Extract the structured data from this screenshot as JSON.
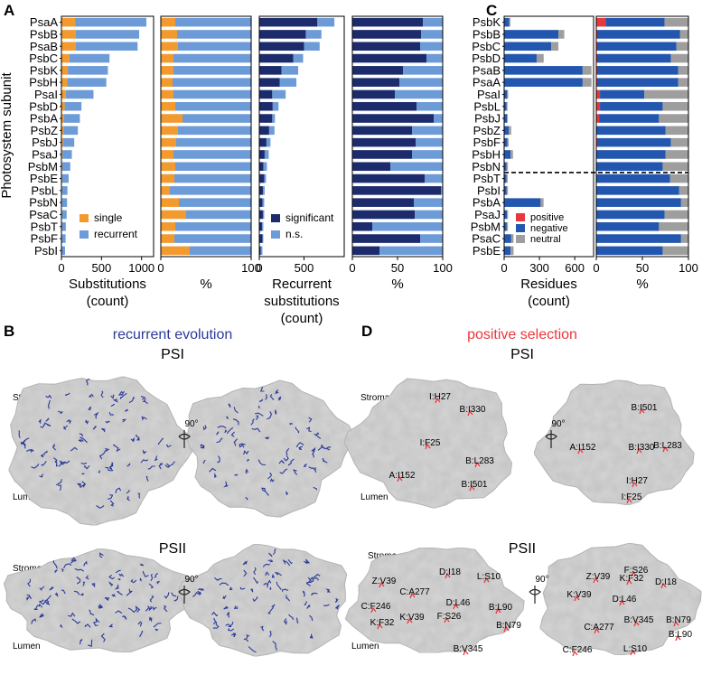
{
  "panels": {
    "A": {
      "letter": "A"
    },
    "B": {
      "letter": "B",
      "title": "recurrent evolution",
      "psi": "PSI",
      "psii": "PSII",
      "stroma": "Stroma",
      "lumen": "Lumen",
      "rotation": "90°"
    },
    "C": {
      "letter": "C"
    },
    "D": {
      "letter": "D",
      "title": "positive selection",
      "psi": "PSI",
      "psii": "PSII",
      "stroma": "Stroma",
      "lumen": "Lumen",
      "rotation": "90°"
    }
  },
  "colors": {
    "single": "#F39A2E",
    "recurrent": "#6D9BD8",
    "significant": "#1C2B6B",
    "ns": "#6D9BD8",
    "positive": "#E8383D",
    "negative": "#2356AE",
    "neutral": "#9E9E9E",
    "recurrent_evo": "#2B3A9A",
    "pos_sel": "#E8383D"
  },
  "chart_data": [
    {
      "type": "bar",
      "orientation": "horizontal",
      "stacked": true,
      "title": "",
      "ylabel": "Photosystem subunit",
      "xlabel": "Substitutions (count)",
      "xlim": [
        0,
        1150
      ],
      "xticks": [
        0,
        500,
        1000
      ],
      "categories": [
        "PsaA",
        "PsbB",
        "PsaB",
        "PsbC",
        "PsbK",
        "PsbH",
        "PsaI",
        "PsbD",
        "PsbA",
        "PsbZ",
        "PsbJ",
        "PsaJ",
        "PsbM",
        "PsbE",
        "PsbL",
        "PsbN",
        "PsaC",
        "PsbT",
        "PsbF",
        "PsbI"
      ],
      "series": [
        {
          "name": "single",
          "values": [
            170,
            180,
            180,
            100,
            80,
            70,
            55,
            40,
            30,
            25,
            20,
            15,
            12,
            10,
            8,
            8,
            7,
            6,
            6,
            5
          ]
        },
        {
          "name": "recurrent",
          "values": [
            890,
            790,
            770,
            500,
            500,
            490,
            345,
            210,
            200,
            180,
            140,
            115,
            98,
            80,
            67,
            62,
            58,
            49,
            46,
            40
          ]
        }
      ],
      "legend": [
        "single",
        "recurrent"
      ],
      "legend_position": "bottom-right"
    },
    {
      "type": "bar",
      "orientation": "horizontal",
      "stacked": true,
      "xlabel": "%",
      "xlim": [
        0,
        100
      ],
      "xticks": [
        0,
        100
      ],
      "categories": [
        "PsaA",
        "PsbB",
        "PsaB",
        "PsbC",
        "PsbK",
        "PsbH",
        "PsaI",
        "PsbD",
        "PsbA",
        "PsbZ",
        "PsbJ",
        "PsaJ",
        "PsbM",
        "PsbE",
        "PsbL",
        "PsbN",
        "PsaC",
        "PsbT",
        "PsbF",
        "PsbI"
      ],
      "series": [
        {
          "name": "single",
          "values": [
            16,
            18,
            19,
            14,
            14,
            13,
            14,
            16,
            24,
            19,
            17,
            14,
            16,
            15,
            10,
            20,
            28,
            16,
            15,
            32
          ]
        },
        {
          "name": "recurrent",
          "values": [
            84,
            82,
            81,
            86,
            86,
            87,
            86,
            84,
            76,
            81,
            83,
            86,
            84,
            85,
            90,
            80,
            72,
            84,
            85,
            68
          ]
        }
      ]
    },
    {
      "type": "bar",
      "orientation": "horizontal",
      "stacked": true,
      "xlabel": "Recurrent substitutions (count)",
      "xlim": [
        0,
        950
      ],
      "xticks": [
        0,
        500
      ],
      "categories": [
        "PsaA",
        "PsbB",
        "PsaB",
        "PsbC",
        "PsbK",
        "PsbH",
        "PsaI",
        "PsbD",
        "PsbA",
        "PsbZ",
        "PsbJ",
        "PsaJ",
        "PsbM",
        "PsbE",
        "PsbL",
        "PsbN",
        "PsaC",
        "PsbT",
        "PsbF",
        "PsbI"
      ],
      "series": [
        {
          "name": "significant",
          "values": [
            650,
            520,
            500,
            380,
            250,
            230,
            145,
            150,
            145,
            110,
            80,
            60,
            45,
            55,
            40,
            35,
            40,
            30,
            35,
            15
          ]
        },
        {
          "name": "n.s.",
          "values": [
            190,
            175,
            175,
            110,
            185,
            185,
            150,
            65,
            30,
            60,
            45,
            45,
            40,
            20,
            20,
            20,
            15,
            15,
            10,
            20
          ]
        }
      ],
      "legend": [
        "significant",
        "n.s."
      ],
      "legend_position": "bottom-right"
    },
    {
      "type": "bar",
      "orientation": "horizontal",
      "stacked": true,
      "xlabel": "%",
      "xlim": [
        0,
        100
      ],
      "xticks": [
        0,
        50,
        100
      ],
      "categories": [
        "PsaA",
        "PsbB",
        "PsaB",
        "PsbC",
        "PsbK",
        "PsbH",
        "PsaI",
        "PsbD",
        "PsbA",
        "PsbZ",
        "PsbJ",
        "PsaJ",
        "PsbM",
        "PsbE",
        "PsbL",
        "PsbN",
        "PsaC",
        "PsbT",
        "PsbF",
        "PsbI"
      ],
      "series": [
        {
          "name": "significant",
          "values": [
            78,
            76,
            75,
            82,
            56,
            52,
            47,
            71,
            90,
            66,
            70,
            66,
            42,
            80,
            98,
            68,
            69,
            22,
            75,
            30
          ]
        },
        {
          "name": "n.s.",
          "values": [
            22,
            24,
            25,
            18,
            44,
            48,
            53,
            29,
            10,
            34,
            30,
            34,
            58,
            20,
            2,
            32,
            31,
            78,
            25,
            70
          ]
        }
      ]
    },
    {
      "type": "bar",
      "orientation": "horizontal",
      "stacked": true,
      "xlabel": "Residues (count)",
      "xlim": [
        0,
        760
      ],
      "xticks": [
        0,
        300,
        600
      ],
      "categories": [
        "PsbK",
        "PsbB",
        "PsbC",
        "PsbD",
        "PsaB",
        "PsaA",
        "PsaI",
        "PsbL",
        "PsbJ",
        "PsbZ",
        "PsbF",
        "PsbH",
        "PsbN",
        "PsbT",
        "PsbI",
        "PsbA",
        "PsaJ",
        "PsbM",
        "PsaC",
        "PsbE"
      ],
      "series": [
        {
          "name": "positive",
          "values": [
            3,
            1,
            1,
            1,
            2,
            2,
            1,
            1,
            1,
            0,
            0,
            0,
            0,
            0,
            0,
            0,
            0,
            0,
            0,
            0
          ]
        },
        {
          "name": "negative",
          "values": [
            40,
            460,
            400,
            275,
            665,
            665,
            25,
            20,
            22,
            40,
            28,
            55,
            20,
            20,
            22,
            310,
            25,
            22,
            60,
            55
          ]
        },
        {
          "name": "neutral",
          "values": [
            10,
            50,
            60,
            60,
            75,
            75,
            8,
            8,
            8,
            20,
            10,
            20,
            12,
            10,
            10,
            25,
            8,
            10,
            20,
            25
          ]
        }
      ],
      "legend": [
        "positive",
        "negative",
        "neutral"
      ],
      "legend_position": "bottom-right"
    },
    {
      "type": "bar",
      "orientation": "horizontal",
      "stacked": true,
      "xlabel": "%",
      "xlim": [
        0,
        100
      ],
      "xticks": [
        0,
        50,
        100
      ],
      "categories": [
        "PsbK",
        "PsbB",
        "PsbC",
        "PsbD",
        "PsaB",
        "PsaA",
        "PsaI",
        "PsbL",
        "PsbJ",
        "PsbZ",
        "PsbF",
        "PsbH",
        "PsbN",
        "PsbT",
        "PsbI",
        "PsbA",
        "PsaJ",
        "PsbM",
        "PsaC",
        "PsbE"
      ],
      "series": [
        {
          "name": "positive",
          "values": [
            10,
            1,
            1,
            1,
            1,
            1,
            4,
            4,
            3,
            0,
            1,
            0,
            0,
            0,
            0,
            0,
            0,
            0,
            0,
            0
          ]
        },
        {
          "name": "negative",
          "values": [
            64,
            90,
            86,
            80,
            88,
            88,
            48,
            68,
            65,
            75,
            80,
            75,
            72,
            80,
            90,
            92,
            74,
            68,
            92,
            72
          ]
        },
        {
          "name": "neutral",
          "values": [
            26,
            9,
            13,
            19,
            11,
            11,
            48,
            28,
            32,
            25,
            19,
            25,
            28,
            20,
            10,
            8,
            26,
            32,
            8,
            28
          ]
        }
      ],
      "divider_after": "PsbN"
    }
  ],
  "structures": {
    "psi_selection_front": [
      "I:H27",
      "B:I330",
      "I:F25",
      "B:L283",
      "A:I152",
      "B:I501"
    ],
    "psi_selection_side": [
      "B:I501",
      "A:I152",
      "B:I330",
      "B:L283",
      "I:H27",
      "I:F25"
    ],
    "psii_selection_front": [
      "D:I18",
      "L:S10",
      "Z:V39",
      "C:A277",
      "C:F246",
      "D:L46",
      "F:S26",
      "K:V39",
      "K:F32",
      "B:L90",
      "B:N79",
      "B:V345"
    ],
    "psii_selection_side": [
      "F:S26",
      "Z:V39",
      "K:F32",
      "D:I18",
      "K:V39",
      "D:L46",
      "B:V345",
      "B:N79",
      "C:A277",
      "B:L90",
      "C:F246",
      "L:S10"
    ]
  }
}
